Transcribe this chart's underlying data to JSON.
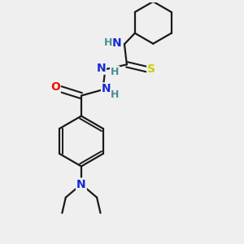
{
  "background_color": "#efefef",
  "bond_color": "#1a1a1a",
  "atom_colors": {
    "N": "#1428d4",
    "O": "#ee1100",
    "S": "#cccc00",
    "H": "#4a9090",
    "C": "#1a1a1a"
  },
  "figsize": [
    3.0,
    3.0
  ],
  "dpi": 100
}
